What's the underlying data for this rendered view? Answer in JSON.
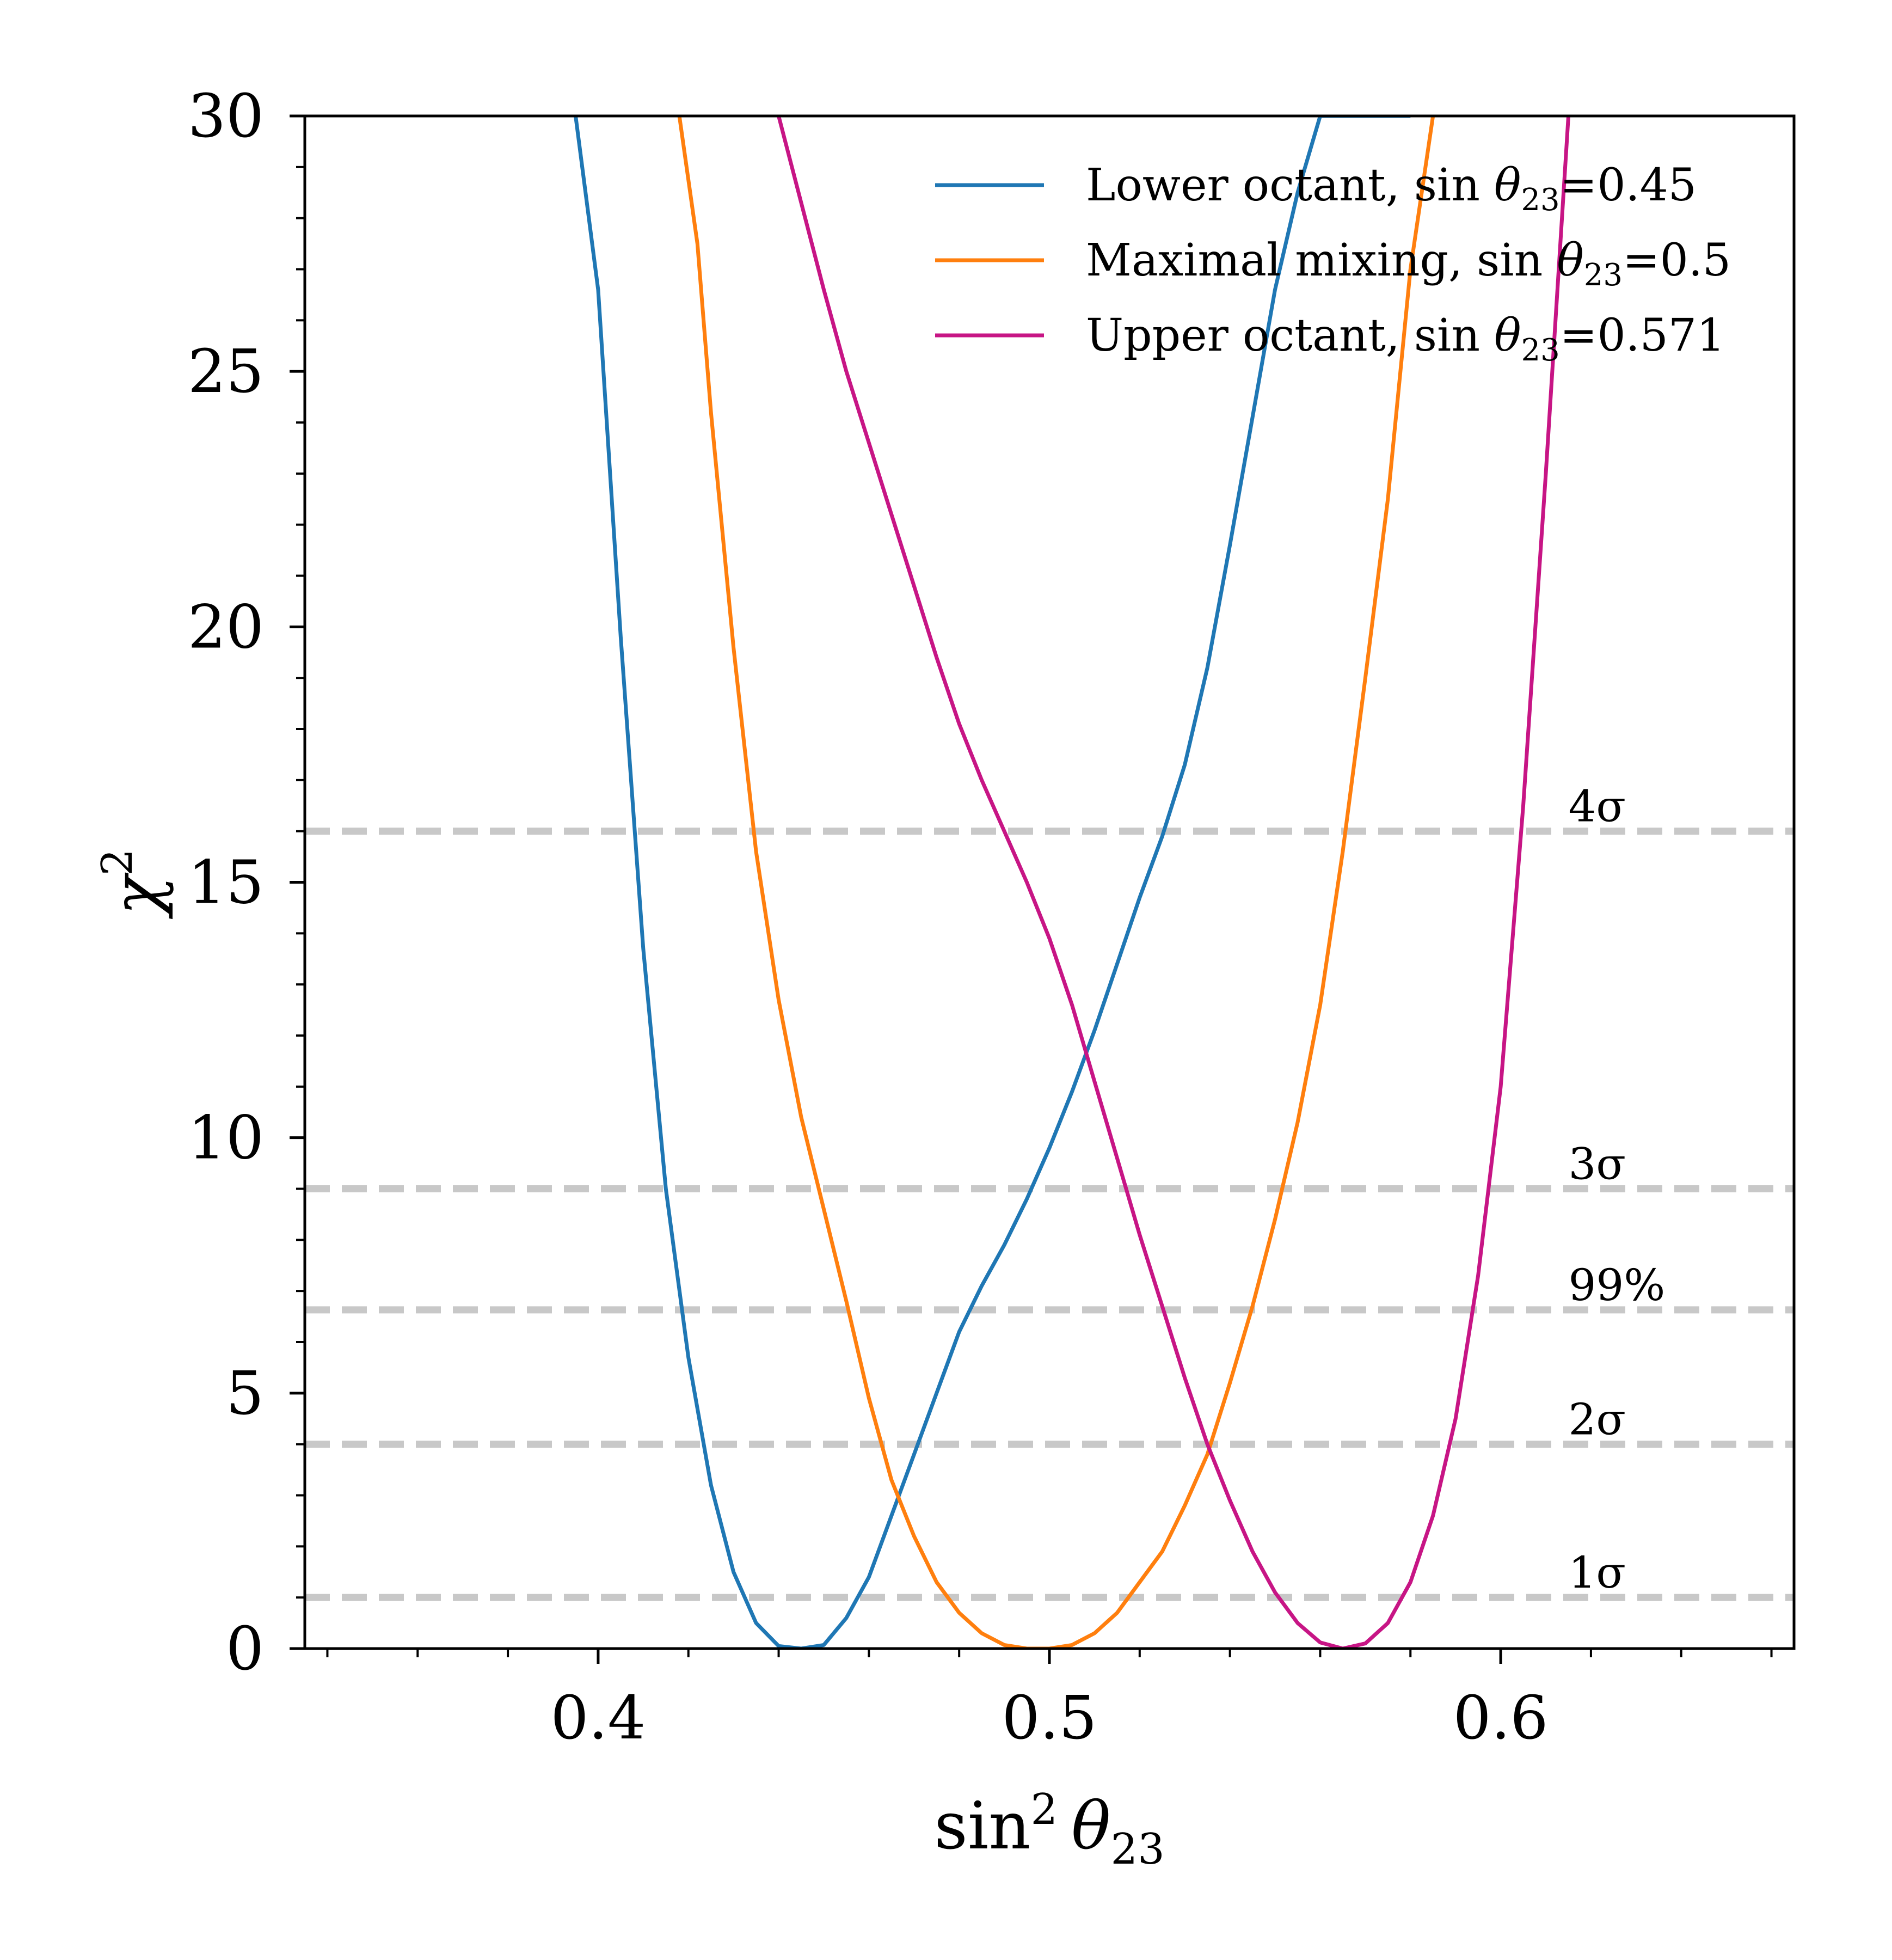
{
  "chart_data": {
    "type": "line",
    "xlabel_main": "sin",
    "xlabel_sup": "2",
    "xlabel_theta": "θ",
    "xlabel_sub": "23",
    "ylabel_main": "χ",
    "ylabel_sup": "2",
    "xlim": [
      0.335,
      0.665
    ],
    "ylim": [
      0,
      30
    ],
    "xticks": [
      {
        "value": 0.4,
        "label": "0.4"
      },
      {
        "value": 0.5,
        "label": "0.5"
      },
      {
        "value": 0.6,
        "label": "0.6"
      }
    ],
    "x_minor_step": 0.02,
    "x_minor_start": 0.34,
    "yticks": [
      {
        "value": 0,
        "label": "0"
      },
      {
        "value": 5,
        "label": "5"
      },
      {
        "value": 10,
        "label": "10"
      },
      {
        "value": 15,
        "label": "15"
      },
      {
        "value": 20,
        "label": "20"
      },
      {
        "value": 25,
        "label": "25"
      },
      {
        "value": 30,
        "label": "30"
      }
    ],
    "y_minor_step": 1,
    "reference_lines": [
      {
        "y": 1,
        "label": "1σ"
      },
      {
        "y": 4,
        "label": "2σ"
      },
      {
        "y": 6.63,
        "label": "99%"
      },
      {
        "y": 9,
        "label": "3σ"
      },
      {
        "y": 16,
        "label": "4σ"
      }
    ],
    "reference_label_x": 0.615,
    "series": [
      {
        "name": "Lower octant",
        "legend_prefix": "Lower octant, sin ",
        "legend_theta": "θ",
        "legend_sub": "23",
        "legend_suffix": "=0.45",
        "color": "#1f77b4",
        "x": [
          0.395,
          0.4,
          0.405,
          0.41,
          0.415,
          0.42,
          0.425,
          0.43,
          0.435,
          0.44,
          0.445,
          0.45,
          0.455,
          0.46,
          0.465,
          0.47,
          0.475,
          0.48,
          0.485,
          0.49,
          0.495,
          0.5,
          0.505,
          0.51,
          0.515,
          0.52,
          0.525,
          0.53,
          0.535,
          0.54,
          0.545,
          0.55,
          0.555,
          0.56,
          0.565,
          0.57,
          0.575,
          0.58
        ],
        "y": [
          30.0,
          26.6,
          19.8,
          13.7,
          9.0,
          5.7,
          3.2,
          1.5,
          0.5,
          0.05,
          0.0,
          0.07,
          0.6,
          1.4,
          2.6,
          3.8,
          5.0,
          6.2,
          7.1,
          7.9,
          8.8,
          9.8,
          10.9,
          12.1,
          13.4,
          14.7,
          15.9,
          17.3,
          19.2,
          21.6,
          24.1,
          26.6,
          28.5,
          30.0,
          30.0,
          30.0,
          30.0,
          30.0
        ]
      },
      {
        "name": "Maximal mixing",
        "legend_prefix": "Maximal mixing, sin ",
        "legend_theta": "θ",
        "legend_sub": "23",
        "legend_suffix": "=0.5",
        "color": "#ff7f0e",
        "x": [
          0.418,
          0.422,
          0.425,
          0.43,
          0.435,
          0.44,
          0.445,
          0.45,
          0.455,
          0.46,
          0.465,
          0.47,
          0.475,
          0.48,
          0.485,
          0.49,
          0.495,
          0.5,
          0.505,
          0.51,
          0.515,
          0.52,
          0.525,
          0.53,
          0.535,
          0.54,
          0.545,
          0.55,
          0.555,
          0.56,
          0.565,
          0.57,
          0.575,
          0.58,
          0.585
        ],
        "y": [
          30.0,
          27.5,
          24.2,
          19.6,
          15.6,
          12.7,
          10.4,
          8.6,
          6.8,
          4.9,
          3.3,
          2.2,
          1.3,
          0.7,
          0.3,
          0.07,
          0.0,
          0.0,
          0.07,
          0.3,
          0.7,
          1.3,
          1.9,
          2.8,
          3.8,
          5.2,
          6.7,
          8.4,
          10.3,
          12.6,
          15.6,
          19.0,
          22.5,
          27.0,
          30.0
        ]
      },
      {
        "name": "Upper octant",
        "legend_prefix": "Upper octant, sin ",
        "legend_theta": "θ",
        "legend_sub": "23",
        "legend_suffix": "=0.571",
        "color": "#c71585",
        "x": [
          0.44,
          0.445,
          0.45,
          0.455,
          0.46,
          0.465,
          0.47,
          0.475,
          0.48,
          0.485,
          0.49,
          0.495,
          0.5,
          0.505,
          0.51,
          0.515,
          0.52,
          0.525,
          0.53,
          0.535,
          0.54,
          0.545,
          0.55,
          0.555,
          0.56,
          0.565,
          0.57,
          0.575,
          0.58,
          0.585,
          0.59,
          0.595,
          0.6,
          0.605,
          0.61,
          0.615
        ],
        "y": [
          30.0,
          28.3,
          26.6,
          25.0,
          23.6,
          22.2,
          20.8,
          19.4,
          18.1,
          17.0,
          16.0,
          15.0,
          13.9,
          12.6,
          11.1,
          9.6,
          8.1,
          6.7,
          5.3,
          4.0,
          2.9,
          1.9,
          1.1,
          0.5,
          0.12,
          0.0,
          0.1,
          0.5,
          1.3,
          2.6,
          4.5,
          7.3,
          11.0,
          16.5,
          23.0,
          30.0
        ]
      }
    ]
  }
}
